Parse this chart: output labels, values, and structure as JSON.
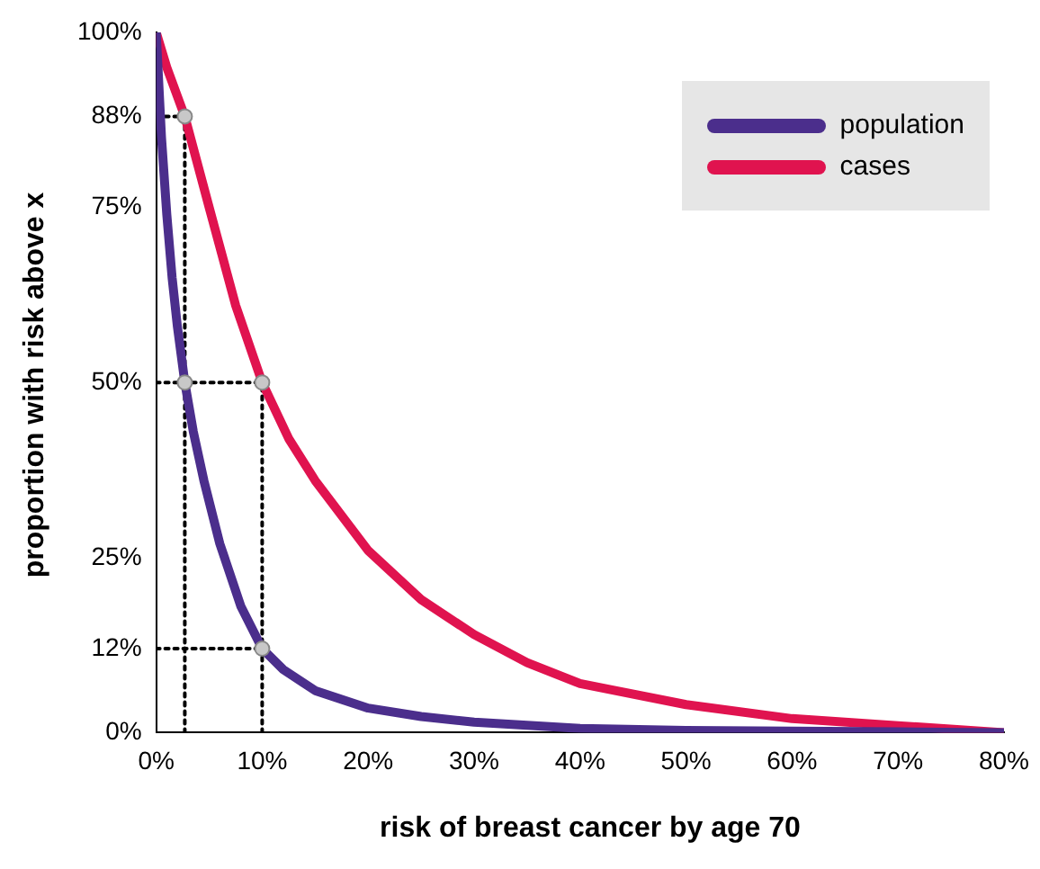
{
  "chart_data": {
    "type": "line",
    "xlabel": "risk of breast cancer by age 70",
    "ylabel": "proportion with risk above x",
    "xlim": [
      0,
      80
    ],
    "ylim": [
      0,
      100
    ],
    "xticks": [
      {
        "value": 0,
        "label": "0%"
      },
      {
        "value": 10,
        "label": "10%"
      },
      {
        "value": 20,
        "label": "20%"
      },
      {
        "value": 30,
        "label": "30%"
      },
      {
        "value": 40,
        "label": "40%"
      },
      {
        "value": 50,
        "label": "50%"
      },
      {
        "value": 60,
        "label": "60%"
      },
      {
        "value": 70,
        "label": "70%"
      },
      {
        "value": 80,
        "label": "80%"
      }
    ],
    "yticks": [
      {
        "value": 0,
        "label": "0%"
      },
      {
        "value": 12,
        "label": "12%"
      },
      {
        "value": 25,
        "label": "25%"
      },
      {
        "value": 50,
        "label": "50%"
      },
      {
        "value": 75,
        "label": "75%"
      },
      {
        "value": 88,
        "label": "88%"
      },
      {
        "value": 100,
        "label": "100%"
      }
    ],
    "grid": false,
    "legend": "top right",
    "marker": "none",
    "line_style": "solid",
    "series": [
      {
        "name": "population",
        "color": "#4b2e8c",
        "x": [
          0,
          0.5,
          1,
          1.5,
          2,
          2.7,
          3.5,
          4.5,
          6,
          8,
          10,
          12,
          15,
          20,
          25,
          30,
          40,
          50,
          60,
          70,
          80
        ],
        "values": [
          100,
          85,
          74,
          65,
          58,
          50,
          43,
          36,
          27,
          18,
          12,
          9,
          6,
          3.5,
          2.3,
          1.5,
          0.6,
          0.3,
          0.2,
          0.1,
          0
        ]
      },
      {
        "name": "cases",
        "color": "#e0134f",
        "x": [
          0,
          1,
          2.7,
          5,
          7.5,
          10,
          12.5,
          15,
          20,
          25,
          30,
          35,
          40,
          50,
          60,
          70,
          80
        ],
        "values": [
          100,
          95,
          88,
          75,
          61,
          50,
          42,
          36,
          26,
          19,
          14,
          10,
          7,
          4,
          2,
          1,
          0
        ]
      },
      {
        "color": "#000000",
        "line_style": "dotted",
        "x": [
          2.7,
          2.7
        ],
        "values": [
          0,
          88
        ]
      },
      {
        "color": "#000000",
        "line_style": "dotted",
        "x": [
          10,
          10
        ],
        "values": [
          0,
          50
        ]
      },
      {
        "color": "#000000",
        "line_style": "dotted",
        "x": [
          0,
          2.7
        ],
        "values": [
          88,
          88
        ]
      },
      {
        "color": "#000000",
        "line_style": "dotted",
        "x": [
          0,
          10
        ],
        "values": [
          50,
          50
        ]
      },
      {
        "color": "#000000",
        "line_style": "dotted",
        "x": [
          0,
          10
        ],
        "values": [
          12,
          12
        ]
      },
      {
        "type": "scatter",
        "color": "#c8c8c8",
        "marker": "circle",
        "x": [
          2.7,
          2.7,
          10,
          10
        ],
        "values": [
          88,
          50,
          50,
          12
        ]
      }
    ]
  }
}
